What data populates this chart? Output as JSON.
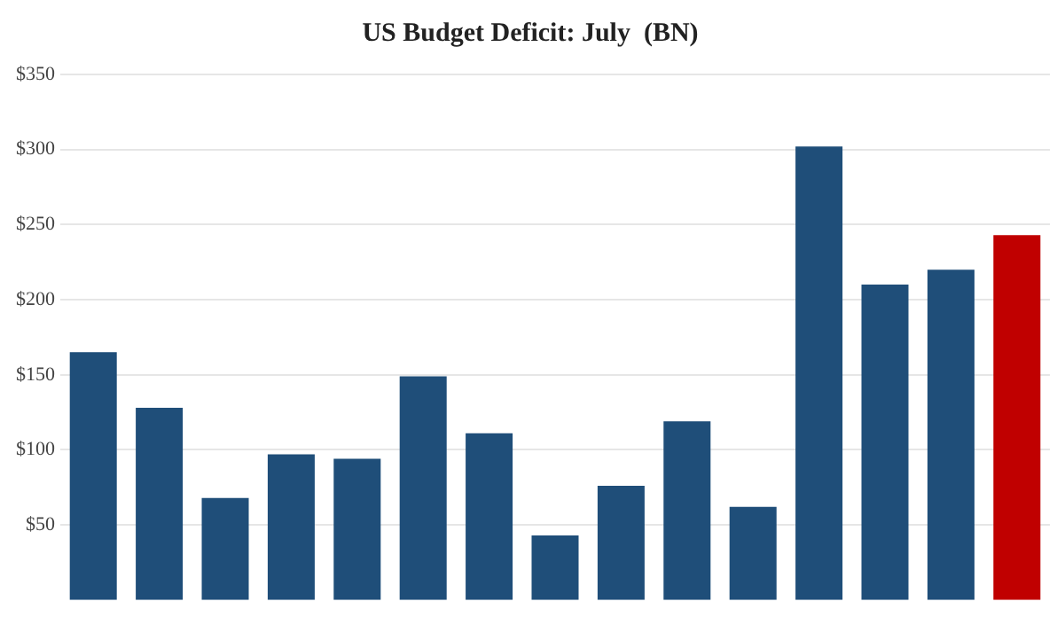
{
  "chart_data": {
    "type": "bar",
    "title": "US Budget Deficit: July  (BN)",
    "categories": [
      null,
      null,
      null,
      null,
      null,
      null,
      null,
      null,
      null,
      null,
      null,
      null,
      null,
      null,
      null
    ],
    "values": [
      165,
      128,
      68,
      97,
      94,
      149,
      111,
      43,
      76,
      119,
      62,
      302,
      210,
      220,
      243
    ],
    "colors": [
      "#1f4e79",
      "#1f4e79",
      "#1f4e79",
      "#1f4e79",
      "#1f4e79",
      "#1f4e79",
      "#1f4e79",
      "#1f4e79",
      "#1f4e79",
      "#1f4e79",
      "#1f4e79",
      "#1f4e79",
      "#1f4e79",
      "#1f4e79",
      "#c00000"
    ],
    "ylim": [
      0,
      350
    ],
    "yticks": [
      {
        "value": 50,
        "label": "$50"
      },
      {
        "value": 100,
        "label": "$100"
      },
      {
        "value": 150,
        "label": "$150"
      },
      {
        "value": 200,
        "label": "$200"
      },
      {
        "value": 250,
        "label": "$250"
      },
      {
        "value": 300,
        "label": "$300"
      },
      {
        "value": 350,
        "label": "$350"
      }
    ],
    "grid": "y",
    "tick_labels": "y",
    "legend": false
  }
}
